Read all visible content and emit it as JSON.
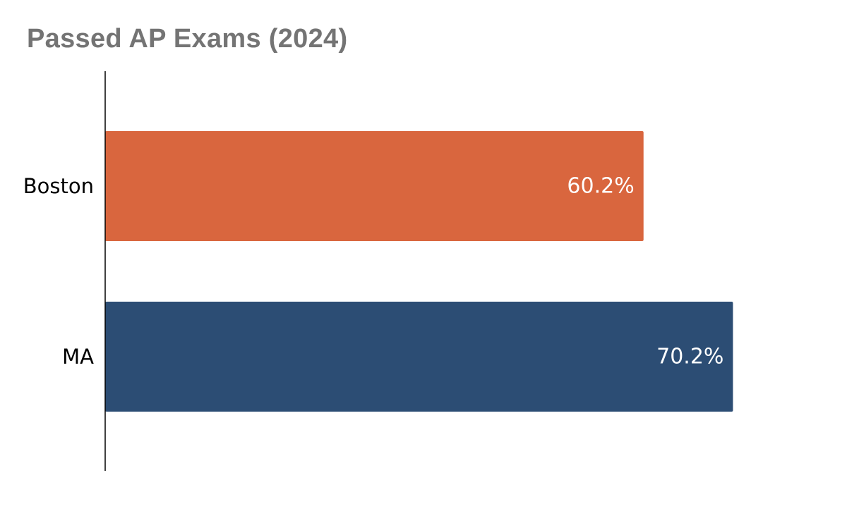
{
  "chart_data": {
    "type": "bar",
    "orientation": "horizontal",
    "title": "Passed AP Exams (2024)",
    "xlabel": "",
    "ylabel": "",
    "categories": [
      "Boston",
      "MA"
    ],
    "values": [
      60.2,
      70.2
    ],
    "value_labels": [
      "60.2%",
      "70.2%"
    ],
    "colors": [
      "#d9663e",
      "#2c4d74"
    ],
    "xlim": [
      0,
      80
    ],
    "grid": false,
    "legend": "none"
  }
}
